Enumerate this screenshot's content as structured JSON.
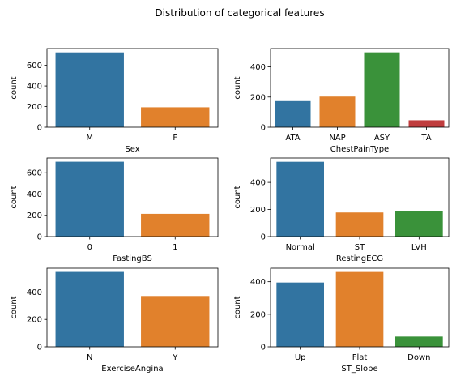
{
  "figure": {
    "title": "Distribution of categorical features"
  },
  "chart_data": [
    {
      "type": "bar",
      "categories": [
        "M",
        "F"
      ],
      "values": [
        725,
        193
      ],
      "colors": [
        "#3274a1",
        "#e1812c"
      ],
      "xlabel": "Sex",
      "ylabel": "count",
      "ylim": [
        0,
        762
      ],
      "yticks": [
        0,
        200,
        400,
        600
      ]
    },
    {
      "type": "bar",
      "categories": [
        "ATA",
        "NAP",
        "ASY",
        "TA"
      ],
      "values": [
        173,
        203,
        496,
        46
      ],
      "colors": [
        "#3274a1",
        "#e1812c",
        "#3a923a",
        "#c03d3e"
      ],
      "xlabel": "ChestPainType",
      "ylabel": "count",
      "ylim": [
        0,
        521
      ],
      "yticks": [
        0,
        200,
        400
      ]
    },
    {
      "type": "bar",
      "categories": [
        "0",
        "1"
      ],
      "values": [
        704,
        214
      ],
      "colors": [
        "#3274a1",
        "#e1812c"
      ],
      "xlabel": "FastingBS",
      "ylabel": "count",
      "ylim": [
        0,
        739
      ],
      "yticks": [
        0,
        200,
        400,
        600
      ]
    },
    {
      "type": "bar",
      "categories": [
        "Normal",
        "ST",
        "LVH"
      ],
      "values": [
        552,
        178,
        188
      ],
      "colors": [
        "#3274a1",
        "#e1812c",
        "#3a923a"
      ],
      "xlabel": "RestingECG",
      "ylabel": "count",
      "ylim": [
        0,
        580
      ],
      "yticks": [
        0,
        200,
        400
      ]
    },
    {
      "type": "bar",
      "categories": [
        "N",
        "Y"
      ],
      "values": [
        547,
        371
      ],
      "colors": [
        "#3274a1",
        "#e1812c"
      ],
      "xlabel": "ExerciseAngina",
      "ylabel": "count",
      "ylim": [
        0,
        574
      ],
      "yticks": [
        0,
        200,
        400
      ]
    },
    {
      "type": "bar",
      "categories": [
        "Up",
        "Flat",
        "Down"
      ],
      "values": [
        395,
        460,
        63
      ],
      "colors": [
        "#3274a1",
        "#e1812c",
        "#3a923a"
      ],
      "xlabel": "ST_Slope",
      "ylabel": "count",
      "ylim": [
        0,
        483
      ],
      "yticks": [
        0,
        200,
        400
      ]
    }
  ]
}
